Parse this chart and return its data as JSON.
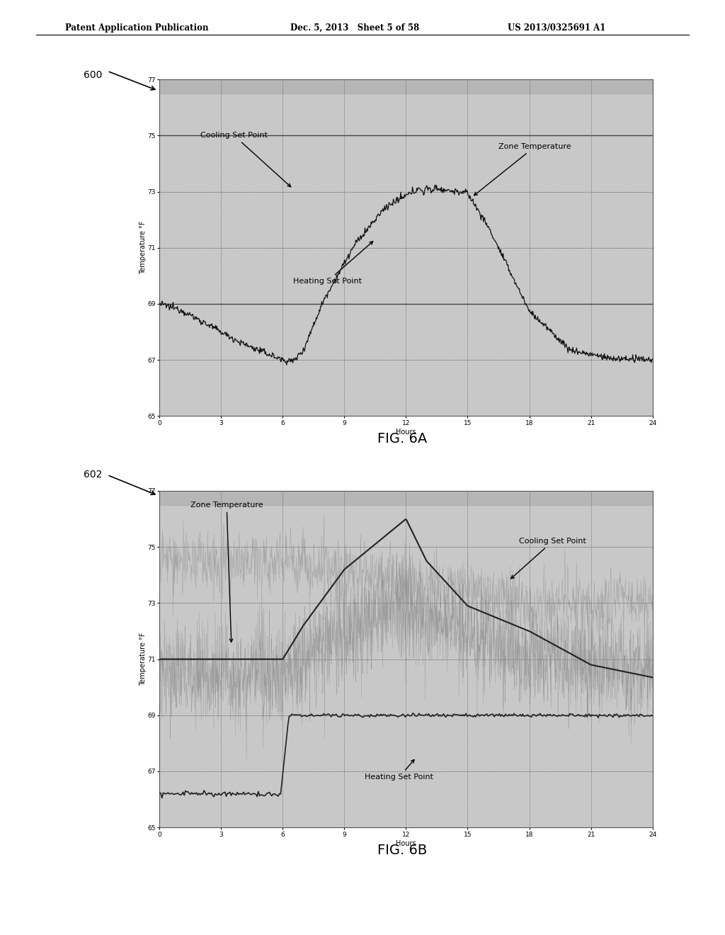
{
  "header_left": "Patent Application Publication",
  "header_mid": "Dec. 5, 2013   Sheet 5 of 58",
  "header_right": "US 2013/0325691 A1",
  "fig_label_A": "FIG. 6A",
  "fig_label_B": "FIG. 6B",
  "label_600": "600",
  "label_602": "602",
  "xlabel": "Hours",
  "ylabel": "Temperature °F",
  "xlim": [
    0,
    24
  ],
  "ylim": [
    65,
    77
  ],
  "xticks": [
    0,
    3,
    6,
    9,
    12,
    15,
    18,
    21,
    24
  ],
  "yticks": [
    65,
    67,
    69,
    71,
    73,
    75,
    77
  ],
  "plot_bg": "#c8c8c8",
  "cooling_label": "Cooling Set Point",
  "heating_label": "Heating Set Point",
  "zone_temp_label": "Zone Temperature"
}
